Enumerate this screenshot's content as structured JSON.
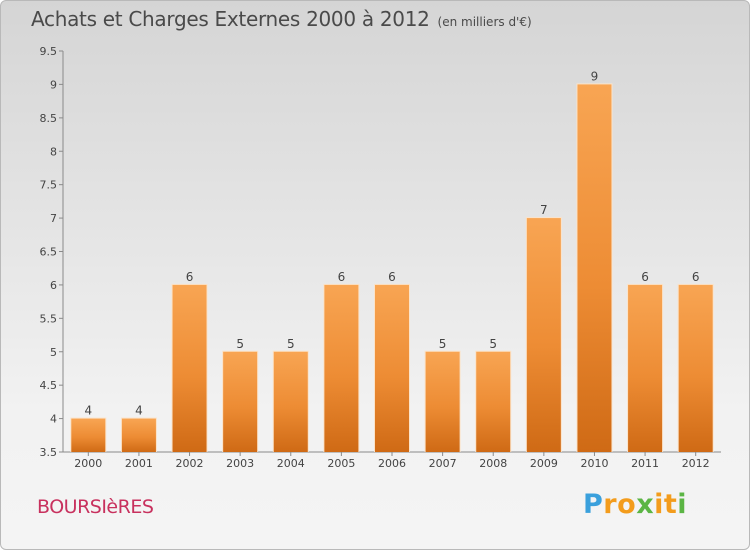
{
  "chart_data": {
    "type": "bar",
    "title": "Achats et Charges Externes 2000 à 2012",
    "subtitle": "(en milliers d'€)",
    "categories": [
      "2000",
      "2001",
      "2002",
      "2003",
      "2004",
      "2005",
      "2006",
      "2007",
      "2008",
      "2009",
      "2010",
      "2011",
      "2012"
    ],
    "values": [
      4,
      4,
      6,
      5,
      5,
      6,
      6,
      5,
      5,
      7,
      9,
      6,
      6
    ],
    "data_labels": [
      "4",
      "4",
      "6",
      "5",
      "5",
      "6",
      "6",
      "5",
      "5",
      "7",
      "9",
      "6",
      "6"
    ],
    "ylim": [
      3.5,
      9.5
    ],
    "yticks": [
      "3.5",
      "4",
      "4.5",
      "5",
      "5.5",
      "6",
      "6.5",
      "7",
      "7.5",
      "8",
      "8.5",
      "9",
      "9.5"
    ],
    "xlabel": "",
    "ylabel": "",
    "grid": false,
    "bar_color": "#f0923a"
  },
  "footer": {
    "town": "BOURSIèRES",
    "brand_letters": [
      "P",
      "r",
      "o",
      "x",
      "i",
      "t",
      "i"
    ],
    "brand_colors": [
      "#3aa0dc",
      "#f39c1c",
      "#f39c1c",
      "#5bb544",
      "#f39c1c",
      "#f39c1c",
      "#5bb544"
    ]
  }
}
